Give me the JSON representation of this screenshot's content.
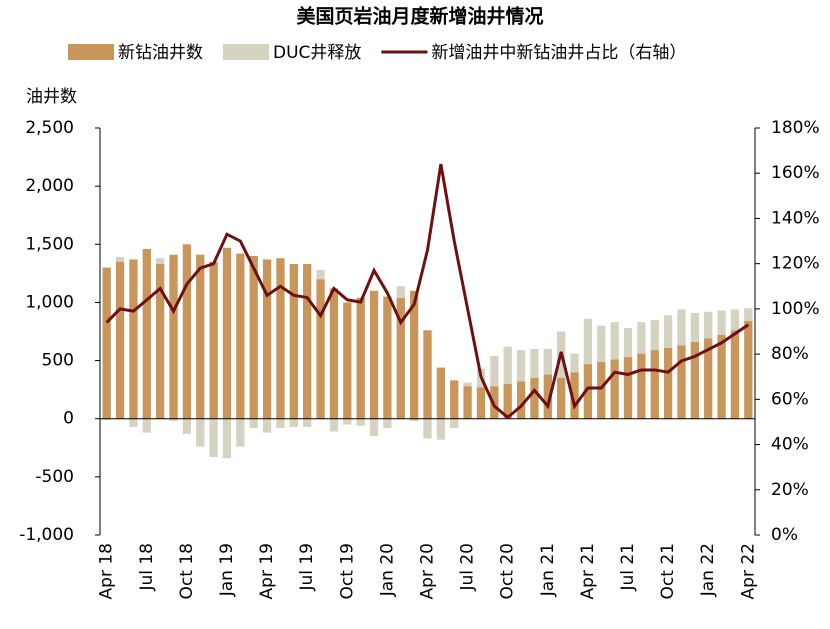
{
  "chart_data": {
    "type": "bar-line",
    "title": "美国页岩油月度新增油井情况",
    "ylabel": "油井数",
    "categories": [
      "Apr 18",
      null,
      null,
      "Jul 18",
      null,
      null,
      "Oct 18",
      null,
      null,
      "Jan 19",
      null,
      null,
      "Apr 19",
      null,
      null,
      "Jul 19",
      null,
      null,
      "Oct 19",
      null,
      null,
      "Jan 20",
      null,
      null,
      "Apr 20",
      null,
      null,
      "Jul 20",
      null,
      null,
      "Oct 20",
      null,
      null,
      "Jan 21",
      null,
      null,
      "Apr 21",
      null,
      null,
      "Jul 21",
      null,
      null,
      "Oct 21",
      null,
      null,
      "Jan 22",
      null,
      null,
      "Apr 22"
    ],
    "series": [
      {
        "name": "新钻油井数",
        "color": "#c8955a",
        "kind": "bar",
        "values": [
          1300,
          1350,
          1370,
          1460,
          1330,
          1410,
          1500,
          1410,
          1350,
          1470,
          1420,
          1400,
          1370,
          1380,
          1330,
          1330,
          1200,
          1120,
          1000,
          1040,
          1100,
          1050,
          1040,
          1100,
          760,
          440,
          330,
          280,
          270,
          280,
          300,
          320,
          350,
          380,
          350,
          400,
          470,
          490,
          510,
          530,
          560,
          590,
          610,
          630,
          660,
          690,
          720,
          760,
          840
        ]
      },
      {
        "name": "DUC井释放",
        "color": "#d4d3c2",
        "kind": "bar",
        "values": [
          -10,
          40,
          -70,
          -120,
          50,
          -20,
          -130,
          -240,
          -330,
          -340,
          -240,
          -80,
          -120,
          -80,
          -70,
          -70,
          80,
          -110,
          -50,
          -60,
          -150,
          -80,
          100,
          -20,
          -170,
          -180,
          -80,
          30,
          160,
          260,
          320,
          270,
          250,
          220,
          400,
          160,
          390,
          310,
          320,
          250,
          270,
          260,
          280,
          310,
          250,
          230,
          210,
          180,
          110
        ]
      },
      {
        "name": "新增油井中新钻油井占比（右轴）",
        "color": "#6e0f12",
        "kind": "line",
        "axis": "y2",
        "values": [
          94,
          100,
          99,
          104,
          109,
          99,
          111,
          118,
          120,
          133,
          130,
          118,
          106,
          110,
          106,
          105,
          97,
          109,
          104,
          103,
          117,
          107,
          94,
          102,
          126,
          164,
          130,
          100,
          70,
          57,
          52,
          57,
          64,
          57,
          81,
          57,
          65,
          65,
          72,
          71,
          73,
          73,
          72,
          77,
          79,
          82,
          85,
          89,
          93
        ]
      }
    ],
    "ylim": [
      -1000,
      2500
    ],
    "yticks": [
      {
        "value": -1000,
        "label": "-1,000"
      },
      -500,
      0,
      500,
      {
        "value": 1000,
        "label": "1,000"
      },
      {
        "value": 1500,
        "label": "1,500"
      },
      {
        "value": 2000,
        "label": "2,000"
      },
      {
        "value": 2500,
        "label": "2,500"
      }
    ],
    "y2lim": [
      0,
      180
    ],
    "y2ticks": [
      {
        "value": 0,
        "label": "0%"
      },
      {
        "value": 20,
        "label": "20%"
      },
      {
        "value": 40,
        "label": "40%"
      },
      {
        "value": 60,
        "label": "60%"
      },
      {
        "value": 80,
        "label": "80%"
      },
      {
        "value": 100,
        "label": "100%"
      },
      {
        "value": 120,
        "label": "120%"
      },
      {
        "value": 140,
        "label": "140%"
      },
      {
        "value": 160,
        "label": "160%"
      },
      {
        "value": 180,
        "label": "180%"
      }
    ]
  }
}
